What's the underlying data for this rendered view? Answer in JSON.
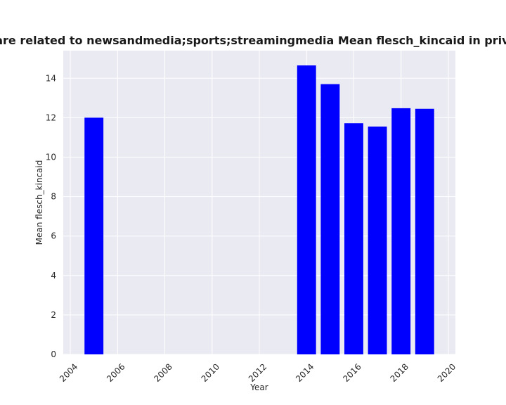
{
  "chart_data": {
    "type": "bar",
    "title": "Categories are related to newsandmedia;sports;streamingmedia Mean flesch_kincaid in privacy policies",
    "xlabel": "Year",
    "ylabel": "Mean flesch_kincaid",
    "x": [
      2005,
      2014,
      2015,
      2016,
      2017,
      2018,
      2019
    ],
    "values": [
      12.0,
      14.65,
      13.7,
      11.72,
      11.55,
      12.48,
      12.45
    ],
    "xlim": [
      2003.7,
      2020.3
    ],
    "ylim": [
      0,
      15.4
    ],
    "xticks": [
      "2004",
      "2006",
      "2008",
      "2010",
      "2012",
      "2014",
      "2016",
      "2018",
      "2020"
    ],
    "yticks": [
      "0",
      "2",
      "4",
      "6",
      "8",
      "10",
      "12",
      "14"
    ],
    "bar_color": "#0000ff",
    "background_color": "#eaeaf2",
    "grid_color": "#ffffff",
    "grid": true
  }
}
